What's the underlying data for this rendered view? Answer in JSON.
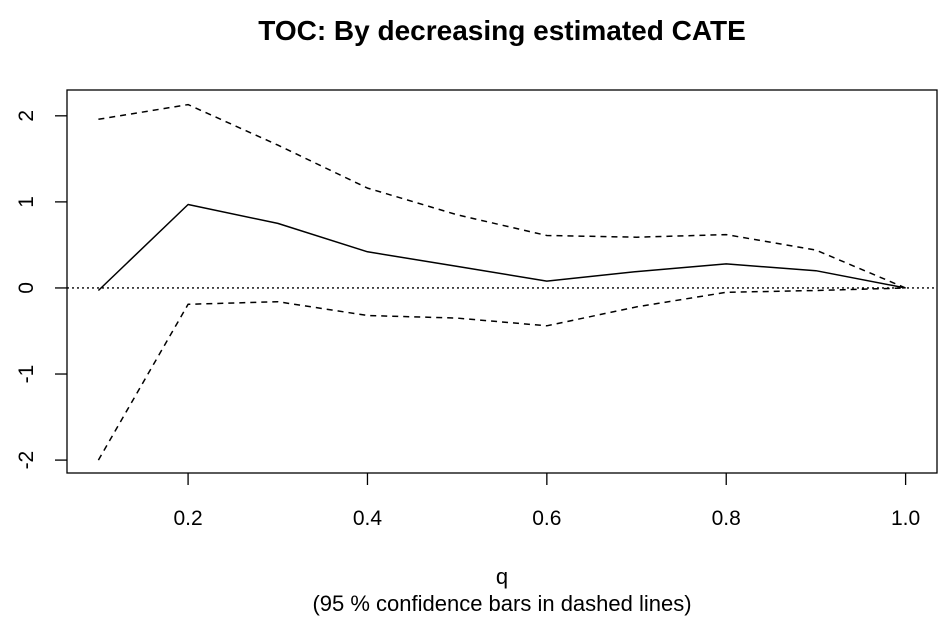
{
  "chart_data": {
    "type": "line",
    "title": "TOC: By decreasing estimated CATE",
    "xlabel": "q",
    "xlabel_note": "(95 % confidence bars in dashed lines)",
    "ylabel": "",
    "xlim": [
      0.065,
      1.035
    ],
    "ylim": [
      -2.15,
      2.3
    ],
    "x_ticks": [
      "0.2",
      "0.4",
      "0.6",
      "0.8",
      "1.0"
    ],
    "x_tick_values": [
      0.2,
      0.4,
      0.6,
      0.8,
      1.0
    ],
    "y_ticks": [
      "-2",
      "-1",
      "0",
      "1",
      "2"
    ],
    "y_tick_values": [
      -2,
      -1,
      0,
      1,
      2
    ],
    "reference_line": {
      "y": 0,
      "style": "dotted"
    },
    "x": [
      0.1,
      0.2,
      0.3,
      0.4,
      0.5,
      0.6,
      0.7,
      0.8,
      0.9,
      1.0
    ],
    "series": [
      {
        "role": "estimate",
        "style": "solid",
        "values": [
          -0.03,
          0.97,
          0.75,
          0.42,
          0.25,
          0.08,
          0.19,
          0.28,
          0.2,
          0.0
        ]
      },
      {
        "role": "upper",
        "style": "dashed",
        "values": [
          1.96,
          2.13,
          1.66,
          1.16,
          0.85,
          0.61,
          0.59,
          0.62,
          0.44,
          0.0
        ]
      },
      {
        "role": "lower",
        "style": "dashed",
        "values": [
          -2.0,
          -0.19,
          -0.16,
          -0.32,
          -0.35,
          -0.44,
          -0.22,
          -0.05,
          -0.03,
          0.0
        ]
      }
    ]
  }
}
